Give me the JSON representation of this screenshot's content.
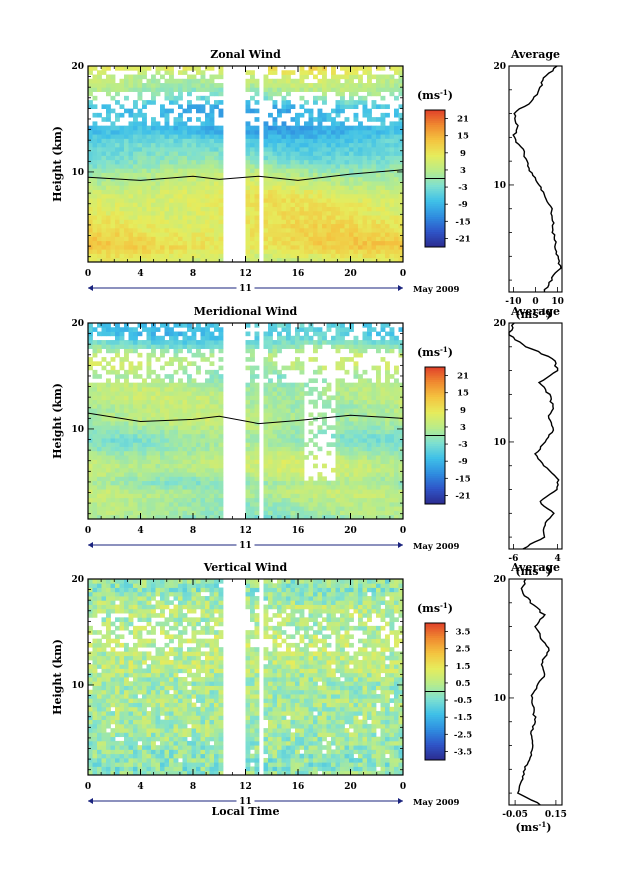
{
  "figure": {
    "bottom_xlabel": "Local Time",
    "day_label": "11",
    "date_label": "May 2009",
    "colorbar_unit": "(ms",
    "unit_exponent": "-1",
    "avg_xunit": "(ms",
    "height_label": "Height (km)",
    "x_ticks": [
      "0",
      "4",
      "8",
      "12",
      "16",
      "20",
      "0"
    ],
    "y_ticks": [
      "20",
      "10"
    ]
  },
  "colormap": [
    "#2b2b8f",
    "#2f55c8",
    "#2f8ee0",
    "#3fc0e8",
    "#7ee0d0",
    "#b8ec8a",
    "#e6ec5c",
    "#f4c440",
    "#f08a30",
    "#e0402a"
  ],
  "chart_data": [
    {
      "type": "heatmap",
      "title": "Zonal Wind",
      "xlabel": "",
      "ylabel": "Height (km)",
      "xlim": [
        0,
        24
      ],
      "ylim": [
        1.5,
        20
      ],
      "colorbar": {
        "labels": [
          "21",
          "15",
          "9",
          "3",
          "-3",
          "-9",
          "-15",
          "-21"
        ],
        "range": [
          -24,
          24
        ]
      },
      "gap_hours": [
        [
          10.2,
          12.0
        ],
        [
          13.0,
          13.3
        ]
      ],
      "profile": {
        "z": [
          1,
          2,
          3,
          4,
          5,
          6,
          7,
          8,
          9,
          10,
          11,
          12,
          13,
          14,
          15,
          16,
          17,
          18,
          19,
          20
        ],
        "values": [
          4,
          7,
          11,
          10,
          9,
          8,
          8,
          7,
          4,
          2,
          -2,
          -4,
          -6,
          -10,
          -8,
          -10,
          -2,
          2,
          4,
          10
        ]
      },
      "average": {
        "title": "Average",
        "x_ticks": [
          "-10",
          "0",
          "10"
        ],
        "xlim": [
          -12,
          12
        ],
        "ylim": [
          1,
          20
        ],
        "y_ticks": [
          "20",
          "10"
        ]
      }
    },
    {
      "type": "heatmap",
      "title": "Meridional Wind",
      "xlabel": "",
      "ylabel": "Height (km)",
      "xlim": [
        0,
        24
      ],
      "ylim": [
        1.5,
        20
      ],
      "colorbar": {
        "labels": [
          "21",
          "15",
          "9",
          "3",
          "-3",
          "-9",
          "-15",
          "-21"
        ],
        "range": [
          -24,
          24
        ]
      },
      "gap_hours": [
        [
          10.2,
          12.0
        ],
        [
          13.0,
          13.3
        ]
      ],
      "profile": {
        "z": [
          1,
          2,
          3,
          4,
          5,
          6,
          7,
          8,
          9,
          10,
          11,
          12,
          13,
          14,
          15,
          16,
          17,
          18,
          19,
          20
        ],
        "values": [
          -4,
          1,
          1,
          3,
          0,
          4,
          4,
          1,
          -1,
          1,
          3,
          2,
          3,
          2,
          0,
          4,
          3,
          -3,
          -7,
          -6
        ]
      },
      "average": {
        "title": "Average",
        "x_ticks": [
          "-6",
          "4"
        ],
        "xlim": [
          -7,
          5
        ],
        "ylim": [
          1,
          20
        ],
        "y_ticks": [
          "20",
          "10"
        ]
      }
    },
    {
      "type": "heatmap",
      "title": "Vertical Wind",
      "xlabel": "Local Time",
      "ylabel": "Height (km)",
      "xlim": [
        0,
        24
      ],
      "ylim": [
        1.5,
        20
      ],
      "colorbar": {
        "labels": [
          "3.5",
          "2.5",
          "1.5",
          "0.5",
          "-0.5",
          "-1.5",
          "-2.5",
          "-3.5"
        ],
        "range": [
          -4,
          4
        ]
      },
      "gap_hours": [
        [
          10.2,
          12.0
        ],
        [
          13.0,
          13.3
        ]
      ],
      "profile": {
        "z": [
          1,
          2,
          3,
          4,
          5,
          6,
          7,
          8,
          9,
          10,
          11,
          12,
          13,
          14,
          15,
          16,
          17,
          18,
          19,
          20
        ],
        "values": [
          0.08,
          -0.04,
          -0.02,
          0.0,
          0.02,
          0.04,
          0.03,
          0.05,
          0.04,
          0.03,
          0.06,
          0.1,
          0.08,
          0.12,
          0.08,
          0.05,
          0.09,
          0.03,
          -0.02,
          0.0
        ]
      },
      "average": {
        "title": "Average",
        "x_ticks": [
          "-0.05",
          "0.15"
        ],
        "xlim": [
          -0.08,
          0.18
        ],
        "ylim": [
          1,
          20
        ],
        "y_ticks": [
          "20",
          "10"
        ]
      }
    }
  ]
}
